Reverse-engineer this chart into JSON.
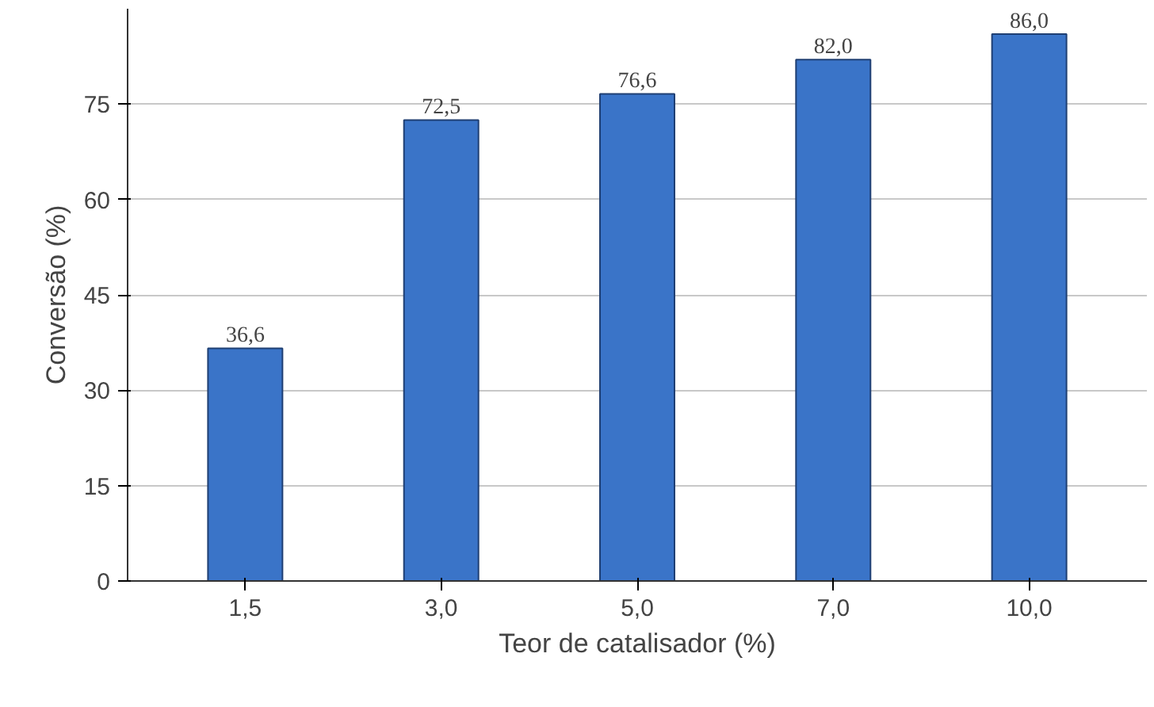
{
  "chart_data": {
    "type": "bar",
    "xlabel": "Teor de catalisador (%)",
    "ylabel": "Conversão (%)",
    "categories": [
      "1,5",
      "3,0",
      "5,0",
      "7,0",
      "10,0"
    ],
    "values": [
      36.6,
      72.5,
      76.6,
      82.0,
      86.0
    ],
    "value_labels": [
      "36,6",
      "72,5",
      "76,6",
      "82,0",
      "86,0"
    ],
    "color": "#3a74c8",
    "ylim": [
      0,
      90
    ],
    "yticks": [
      0,
      15,
      30,
      45,
      60,
      75
    ],
    "grid": "y"
  }
}
